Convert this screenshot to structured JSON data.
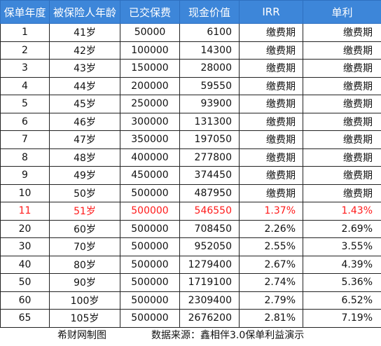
{
  "table": {
    "headers": [
      "保单年度",
      "被保险人年龄",
      "已交保费",
      "现金价值",
      "IRR",
      "单利"
    ],
    "highlight_color": "#ff1a1a",
    "header_bg": "#3d86d9",
    "rows": [
      [
        "1",
        "41岁",
        "50000",
        "6100",
        "缴费期",
        "缴费期"
      ],
      [
        "2",
        "42岁",
        "100000",
        "14300",
        "缴费期",
        "缴费期"
      ],
      [
        "3",
        "43岁",
        "150000",
        "28000",
        "缴费期",
        "缴费期"
      ],
      [
        "4",
        "44岁",
        "200000",
        "59550",
        "缴费期",
        "缴费期"
      ],
      [
        "5",
        "45岁",
        "250000",
        "93900",
        "缴费期",
        "缴费期"
      ],
      [
        "6",
        "46岁",
        "300000",
        "131300",
        "缴费期",
        "缴费期"
      ],
      [
        "7",
        "47岁",
        "350000",
        "197050",
        "缴费期",
        "缴费期"
      ],
      [
        "8",
        "48岁",
        "400000",
        "277800",
        "缴费期",
        "缴费期"
      ],
      [
        "9",
        "49岁",
        "450000",
        "374450",
        "缴费期",
        "缴费期"
      ],
      [
        "10",
        "50岁",
        "500000",
        "487950",
        "缴费期",
        "缴费期"
      ],
      [
        "11",
        "51岁",
        "500000",
        "546550",
        "1.37%",
        "1.43%"
      ],
      [
        "20",
        "60岁",
        "500000",
        "708450",
        "2.26%",
        "2.69%"
      ],
      [
        "30",
        "70岁",
        "500000",
        "952050",
        "2.55%",
        "3.55%"
      ],
      [
        "40",
        "80岁",
        "500000",
        "1279400",
        "2.67%",
        "4.39%"
      ],
      [
        "50",
        "90岁",
        "500000",
        "1719100",
        "2.74%",
        "5.36%"
      ],
      [
        "60",
        "100岁",
        "500000",
        "2309400",
        "2.79%",
        "6.52%"
      ],
      [
        "65",
        "105岁",
        "500000",
        "2676200",
        "2.81%",
        "7.19%"
      ]
    ],
    "highlight_row": 10
  },
  "footer": {
    "credit": "希财网制图",
    "source": "数据来源：鑫相伴3.0保单利益演示"
  }
}
